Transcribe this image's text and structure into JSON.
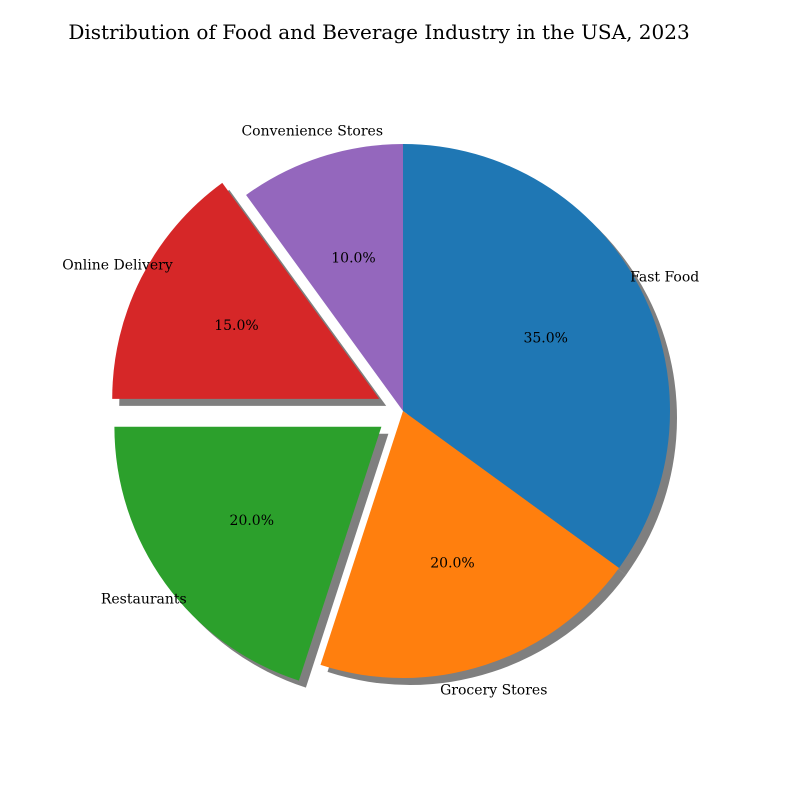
{
  "chart_data": {
    "type": "pie",
    "title": "Distribution of Food and Beverage Industry in the USA, 2023",
    "slices": [
      {
        "label": "Fast Food",
        "value": 35.0,
        "pct_text": "35.0%",
        "color": "#1f77b4",
        "exploded": false
      },
      {
        "label": "Grocery Stores",
        "value": 20.0,
        "pct_text": "20.0%",
        "color": "#ff7f0e",
        "exploded": false
      },
      {
        "label": "Restaurants",
        "value": 20.0,
        "pct_text": "20.0%",
        "color": "#2ca02c",
        "exploded": true
      },
      {
        "label": "Online Delivery",
        "value": 15.0,
        "pct_text": "15.0%",
        "color": "#d62728",
        "exploded": true
      },
      {
        "label": "Convenience Stores",
        "value": 10.0,
        "pct_text": "10.0%",
        "color": "#9467bd",
        "exploded": false
      }
    ],
    "start_angle_deg": 90,
    "direction": "clockwise",
    "shadow": true,
    "legend": "none",
    "grid": false
  }
}
